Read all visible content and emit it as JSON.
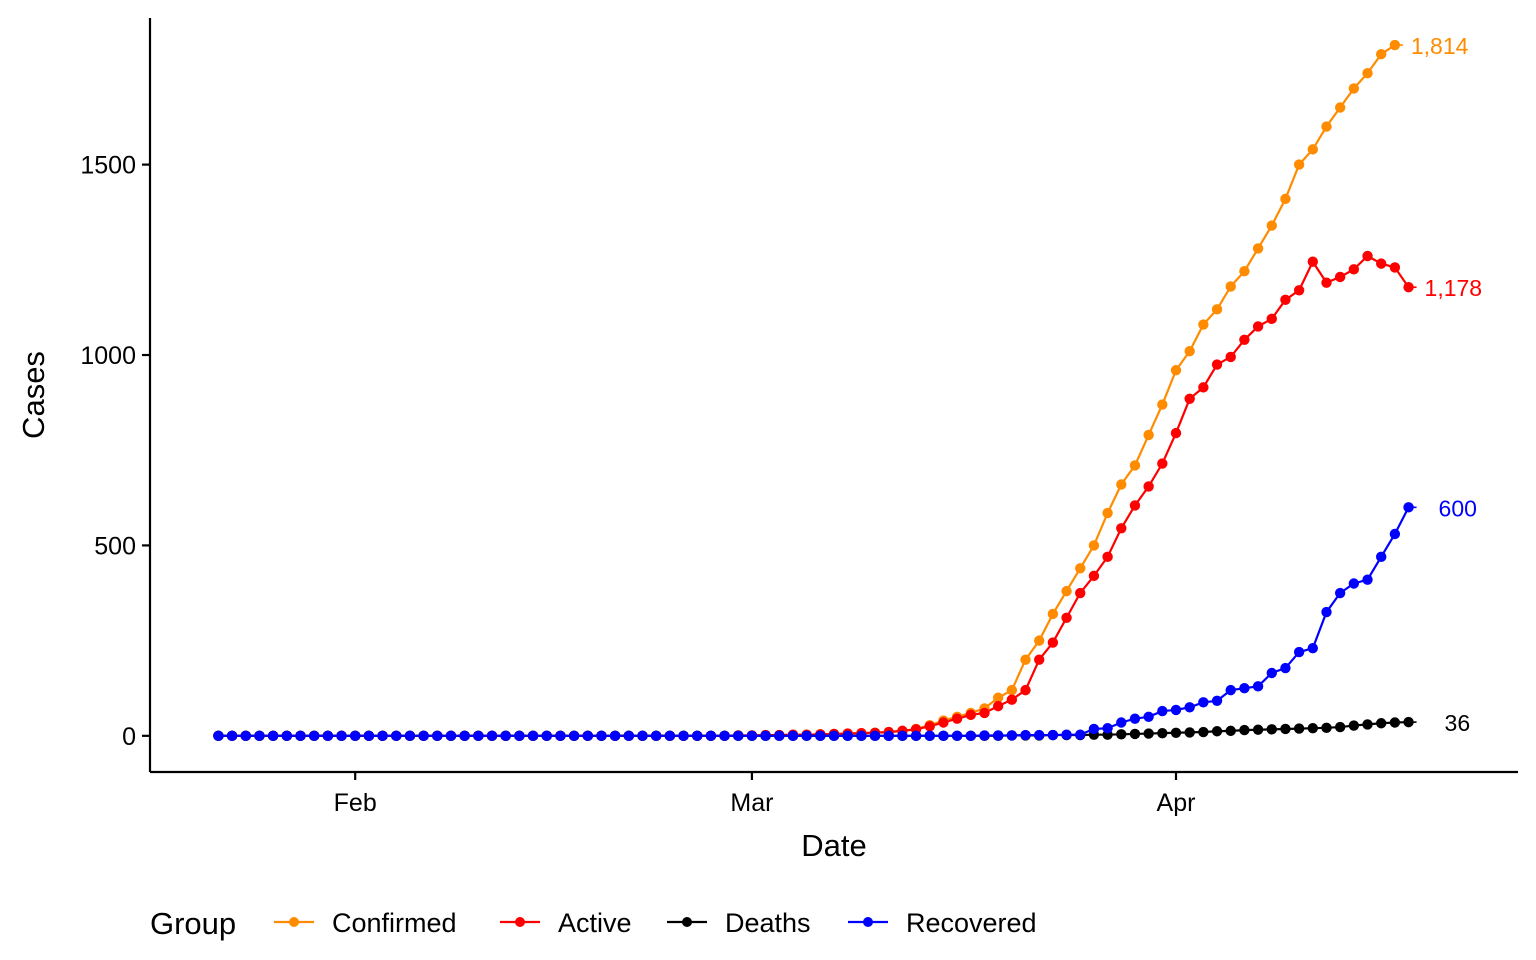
{
  "chart_data": {
    "type": "line",
    "title": "",
    "xlabel": "Date",
    "ylabel": "Cases",
    "x_start": "2020-01-22",
    "x_end": "2020-04-17",
    "xlim": [
      "2020-01-17",
      "2020-04-26"
    ],
    "ylim": [
      -95,
      1885
    ],
    "x_ticks": [
      {
        "date": "2020-02-01",
        "label": "Feb"
      },
      {
        "date": "2020-03-01",
        "label": "Mar"
      },
      {
        "date": "2020-04-01",
        "label": "Apr"
      }
    ],
    "y_ticks": [
      {
        "value": 0,
        "label": "0"
      },
      {
        "value": 500,
        "label": "500"
      },
      {
        "value": 1000,
        "label": "1000"
      },
      {
        "value": 1500,
        "label": "1500"
      }
    ],
    "grid": false,
    "legend": {
      "title": "Group",
      "position": "bottom"
    },
    "series": [
      {
        "name": "Confirmed",
        "color": "#FF8C00",
        "end_label": "1,814",
        "values": [
          0,
          0,
          0,
          0,
          0,
          0,
          0,
          0,
          0,
          0,
          0,
          0,
          0,
          0,
          0,
          0,
          0,
          0,
          0,
          0,
          0,
          0,
          0,
          0,
          0,
          0,
          0,
          0,
          0,
          0,
          0,
          0,
          0,
          0,
          0,
          0,
          0,
          0,
          1,
          1,
          2,
          2,
          3,
          3,
          4,
          5,
          6,
          7,
          8,
          10,
          13,
          18,
          28,
          40,
          50,
          60,
          72,
          100,
          120,
          200,
          250,
          320,
          380,
          440,
          500,
          585,
          660,
          710,
          790,
          870,
          960,
          1010,
          1080,
          1120,
          1180,
          1220,
          1280,
          1340,
          1410,
          1500,
          1540,
          1600,
          1650,
          1700,
          1740,
          1790,
          1814
        ]
      },
      {
        "name": "Active",
        "color": "#FF0000",
        "end_label": "1,178",
        "values": [
          0,
          0,
          0,
          0,
          0,
          0,
          0,
          0,
          0,
          0,
          0,
          0,
          0,
          0,
          0,
          0,
          0,
          0,
          0,
          0,
          0,
          0,
          0,
          0,
          0,
          0,
          0,
          0,
          0,
          0,
          0,
          0,
          0,
          0,
          0,
          0,
          0,
          0,
          1,
          1,
          2,
          2,
          3,
          3,
          4,
          5,
          6,
          7,
          8,
          10,
          13,
          17,
          25,
          35,
          45,
          55,
          60,
          78,
          95,
          120,
          200,
          245,
          310,
          375,
          420,
          470,
          545,
          605,
          655,
          715,
          795,
          885,
          915,
          975,
          995,
          1040,
          1075,
          1095,
          1145,
          1170,
          1245,
          1190,
          1205,
          1225,
          1260,
          1240,
          1230,
          1178
        ]
      },
      {
        "name": "Deaths",
        "color": "#000000",
        "end_label": "36",
        "values": [
          0,
          0,
          0,
          0,
          0,
          0,
          0,
          0,
          0,
          0,
          0,
          0,
          0,
          0,
          0,
          0,
          0,
          0,
          0,
          0,
          0,
          0,
          0,
          0,
          0,
          0,
          0,
          0,
          0,
          0,
          0,
          0,
          0,
          0,
          0,
          0,
          0,
          0,
          0,
          0,
          0,
          0,
          0,
          0,
          0,
          0,
          0,
          0,
          0,
          0,
          0,
          0,
          0,
          0,
          0,
          0,
          0,
          0,
          1,
          1,
          1,
          2,
          2,
          2,
          3,
          3,
          4,
          5,
          6,
          7,
          8,
          9,
          10,
          12,
          13,
          15,
          16,
          17,
          18,
          19,
          20,
          21,
          23,
          27,
          30,
          33,
          35,
          36
        ]
      },
      {
        "name": "Recovered",
        "color": "#0000FF",
        "end_label": "600",
        "values": [
          0,
          0,
          0,
          0,
          0,
          0,
          0,
          0,
          0,
          0,
          0,
          0,
          0,
          0,
          0,
          0,
          0,
          0,
          0,
          0,
          0,
          0,
          0,
          0,
          0,
          0,
          0,
          0,
          0,
          0,
          0,
          0,
          0,
          0,
          0,
          0,
          0,
          0,
          0,
          0,
          0,
          0,
          0,
          0,
          0,
          0,
          0,
          0,
          0,
          0,
          0,
          0,
          0,
          0,
          0,
          0,
          1,
          1,
          1,
          2,
          2,
          2,
          3,
          3,
          18,
          20,
          35,
          45,
          50,
          65,
          68,
          75,
          88,
          92,
          120,
          125,
          130,
          165,
          178,
          220,
          230,
          325,
          375,
          400,
          410,
          470,
          530,
          600
        ]
      }
    ]
  }
}
